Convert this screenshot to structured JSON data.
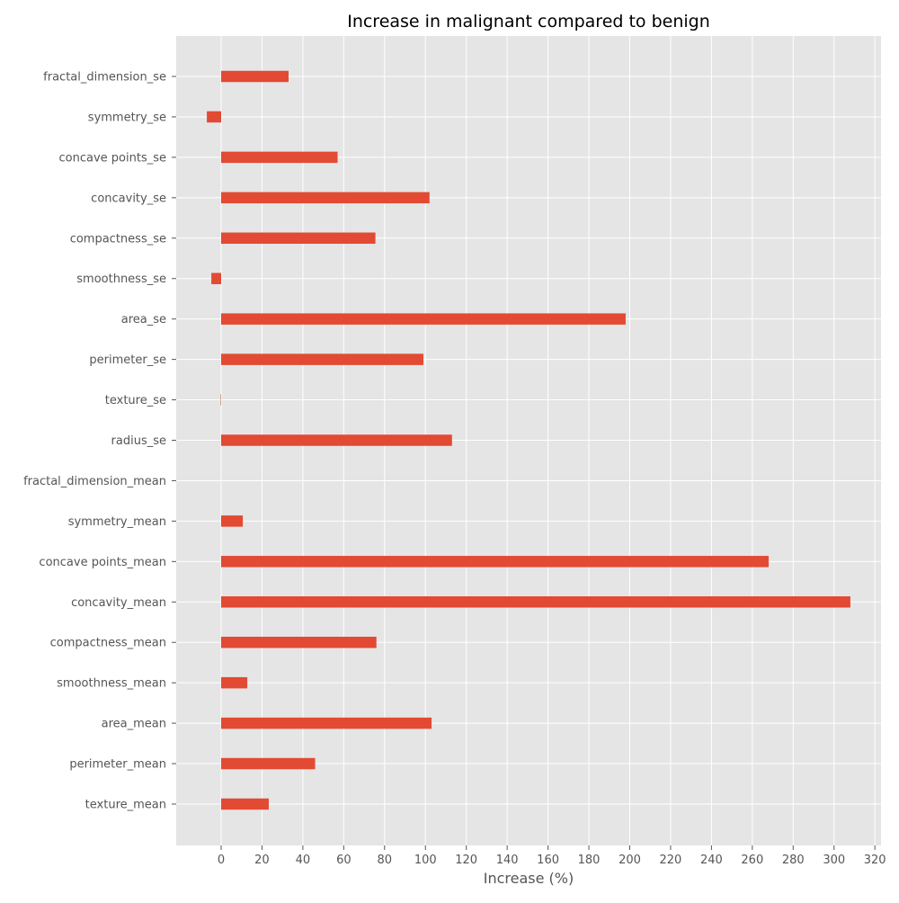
{
  "colors": {
    "background": "#ffffff",
    "plot_background": "#e5e5e5",
    "grid": "#ffffff",
    "bar": "#e24a33",
    "text": "#555555",
    "title": "#000000"
  },
  "chart_data": {
    "type": "bar",
    "orientation": "horizontal",
    "title": "Increase in malignant compared to benign",
    "xlabel": "Increase (%)",
    "ylabel": "",
    "xlim": [
      -22,
      323
    ],
    "xticks": [
      0,
      20,
      40,
      60,
      80,
      100,
      120,
      140,
      160,
      180,
      200,
      220,
      240,
      260,
      280,
      300,
      320
    ],
    "grid": true,
    "categories": [
      "texture_mean",
      "perimeter_mean",
      "area_mean",
      "smoothness_mean",
      "compactness_mean",
      "concavity_mean",
      "concave points_mean",
      "symmetry_mean",
      "fractal_dimension_mean",
      "radius_se",
      "texture_se",
      "perimeter_se",
      "area_se",
      "smoothness_se",
      "compactness_se",
      "concavity_se",
      "concave points_se",
      "symmetry_se",
      "fractal_dimension_se"
    ],
    "values": [
      23.3,
      46.0,
      103.0,
      12.8,
      76.0,
      308.0,
      268.0,
      10.6,
      0,
      113.0,
      -0.2,
      99.0,
      198.0,
      -4.8,
      75.5,
      102.0,
      57.0,
      -7.0,
      33.0
    ]
  }
}
